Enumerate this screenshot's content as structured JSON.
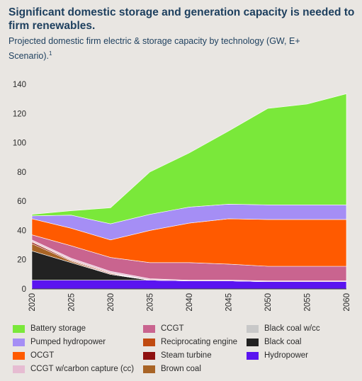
{
  "title": "Significant domestic storage and generation capacity is needed to firm renewables.",
  "subtitle": "Projected domestic firm electric & storage capacity by technology (GW, E+ Scenario).",
  "subtitle_footnote": "1",
  "chart_data": {
    "type": "area",
    "stacked": true,
    "categories": [
      "2020",
      "2025",
      "2030",
      "2035",
      "2040",
      "2045",
      "2050",
      "2055",
      "2060"
    ],
    "ylim": [
      0,
      140
    ],
    "yticks": [
      "0",
      "20",
      "40",
      "60",
      "80",
      "100",
      "120",
      "140"
    ],
    "grid": false,
    "legend_position": "bottom",
    "series": [
      {
        "name": "Hydropower",
        "color": "#5a14f0",
        "values": [
          6,
          6,
          6,
          6,
          5.5,
          5.5,
          5,
          5,
          5
        ]
      },
      {
        "name": "Black coal",
        "color": "#222222",
        "values": [
          20,
          12,
          4,
          0,
          0,
          0,
          0,
          0,
          0
        ]
      },
      {
        "name": "Brown coal",
        "color": "#a86426",
        "values": [
          5,
          1,
          0,
          0,
          0,
          0,
          0,
          0,
          0
        ]
      },
      {
        "name": "Steam turbine",
        "color": "#8e1010",
        "values": [
          1,
          0.5,
          0.5,
          0,
          0,
          0,
          0,
          0,
          0
        ]
      },
      {
        "name": "Reciprocating engine",
        "color": "#c04a10",
        "values": [
          0.5,
          0.5,
          0.5,
          0,
          0,
          0,
          0,
          0,
          0
        ]
      },
      {
        "name": "Black coal w/cc",
        "color": "#c8c8c8",
        "values": [
          0,
          0,
          0,
          0,
          0,
          0,
          0,
          0,
          0
        ]
      },
      {
        "name": "CCGT w/carbon capture (cc)",
        "color": "#e6bcd2",
        "values": [
          1,
          1,
          1,
          1,
          0.5,
          0.5,
          0.5,
          0.5,
          0.5
        ]
      },
      {
        "name": "CCGT",
        "color": "#c9648f",
        "values": [
          3.5,
          8.5,
          9.5,
          11,
          12,
          11,
          10,
          10,
          10
        ]
      },
      {
        "name": "OCGT",
        "color": "#ff5a00",
        "values": [
          11,
          12,
          12,
          22,
          27,
          31,
          32,
          32,
          32
        ]
      },
      {
        "name": "Pumped hydropower",
        "color": "#a58ef5",
        "values": [
          2,
          9,
          11,
          11,
          11,
          10,
          10,
          10,
          10
        ]
      },
      {
        "name": "Battery storage",
        "color": "#7ae83a",
        "values": [
          1,
          3,
          11,
          29,
          37,
          50,
          66,
          69,
          76
        ]
      }
    ]
  },
  "legend": [
    {
      "label": "Battery storage",
      "color": "#7ae83a"
    },
    {
      "label": "CCGT",
      "color": "#c9648f"
    },
    {
      "label": "Black coal w/cc",
      "color": "#c8c8c8"
    },
    {
      "label": "Pumped hydropower",
      "color": "#a58ef5"
    },
    {
      "label": "Reciprocating engine",
      "color": "#c04a10"
    },
    {
      "label": "Black coal",
      "color": "#222222"
    },
    {
      "label": "OCGT",
      "color": "#ff5a00"
    },
    {
      "label": "Steam turbine",
      "color": "#8e1010"
    },
    {
      "label": "Hydropower",
      "color": "#5a14f0"
    },
    {
      "label": "CCGT w/carbon capture (cc)",
      "color": "#e6bcd2"
    },
    {
      "label": "Brown coal",
      "color": "#a86426"
    }
  ]
}
